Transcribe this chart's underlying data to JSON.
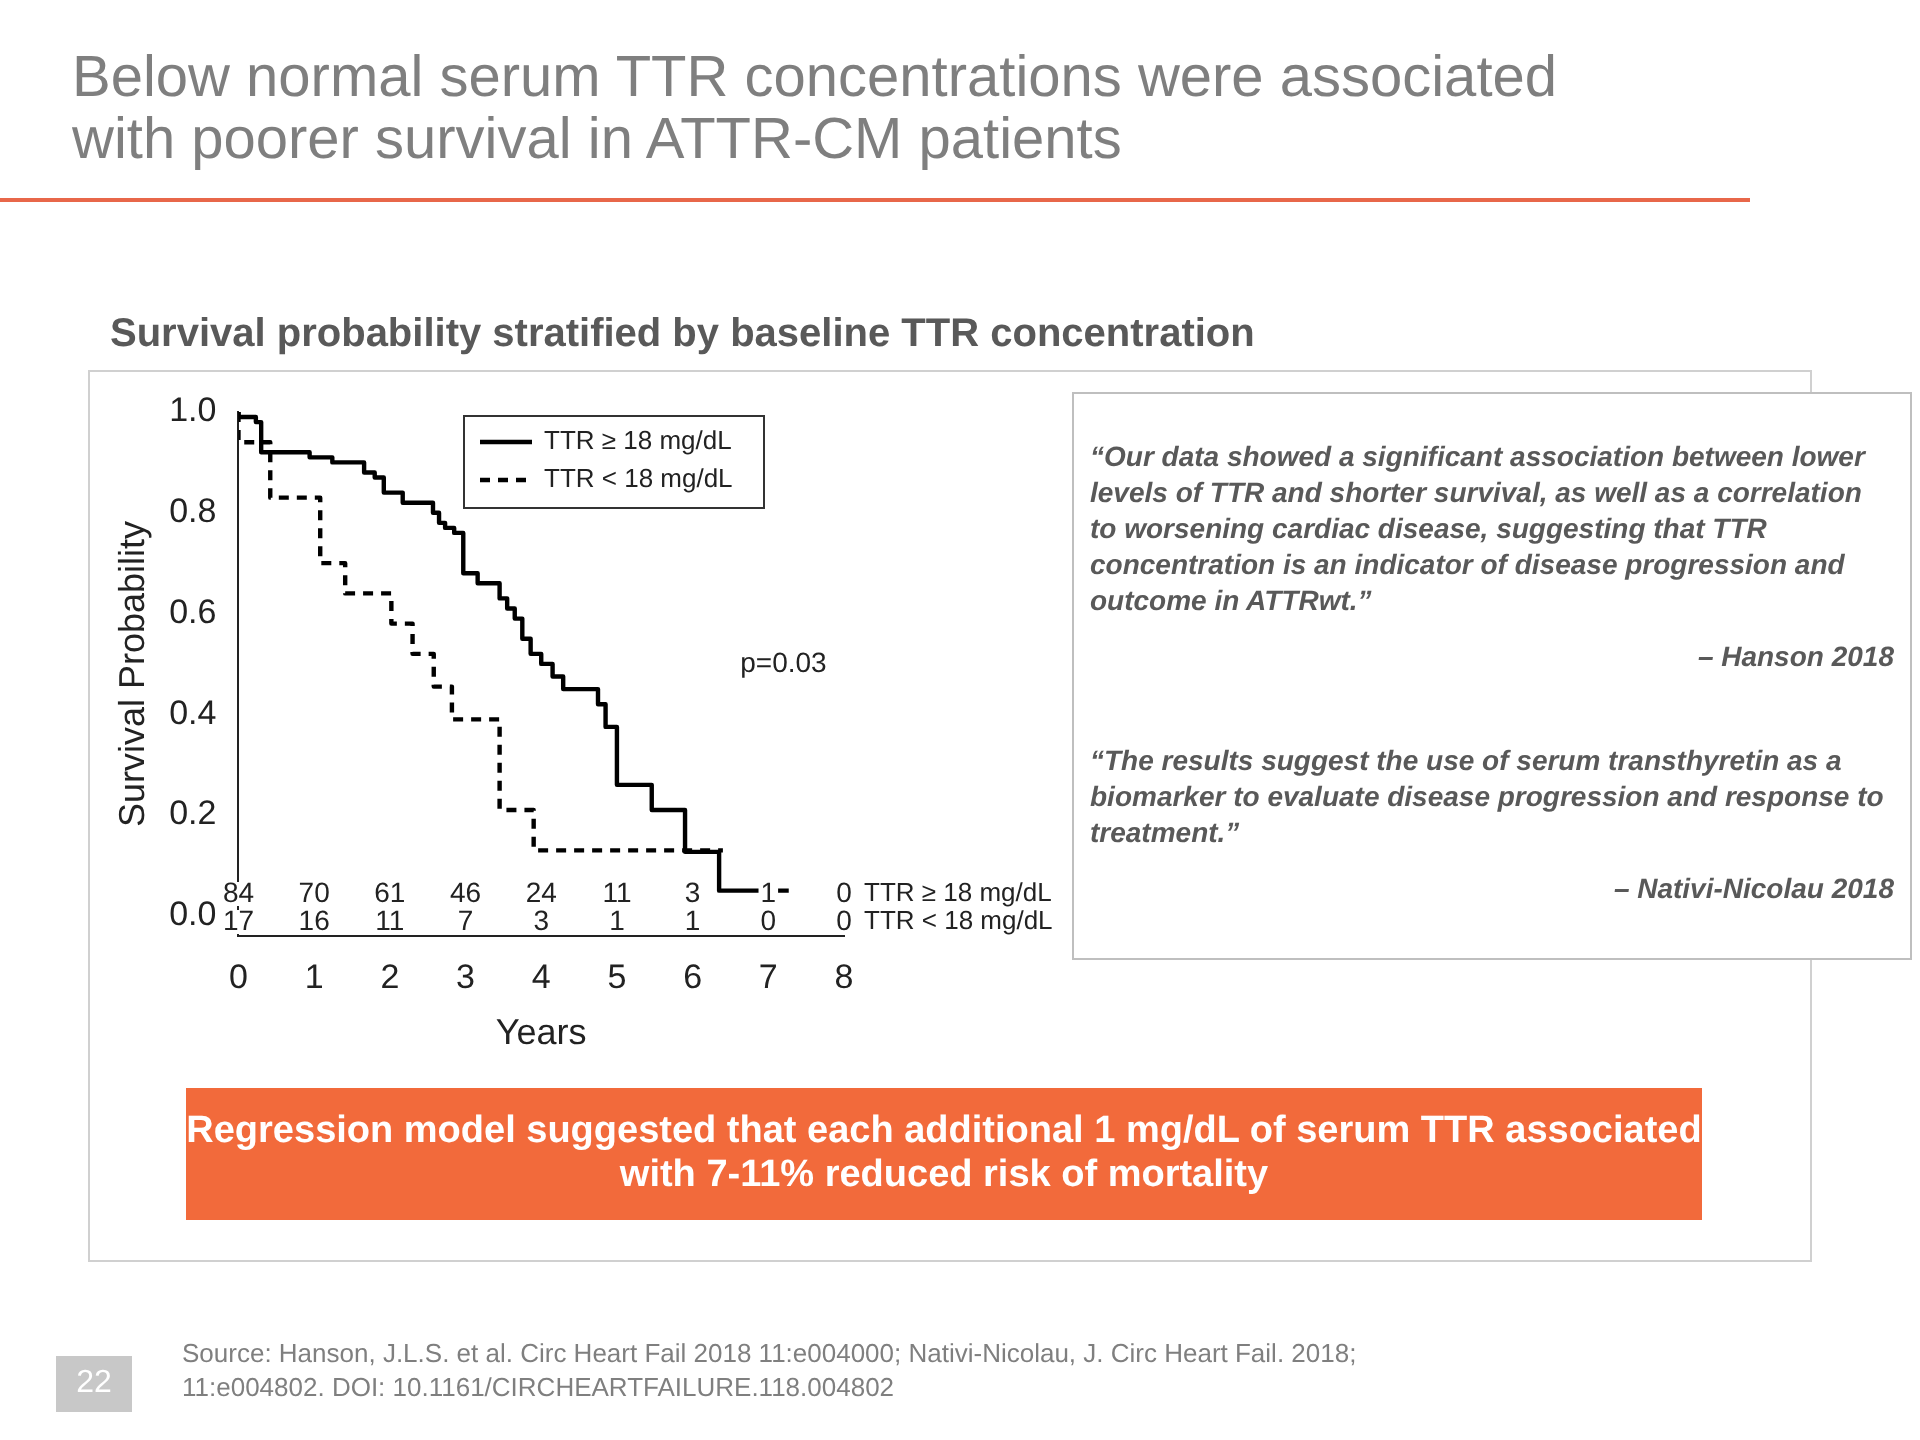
{
  "chart_data": {
    "type": "step",
    "title": "Below normal serum TTR concentrations were associated with poorer survival in ATTR-CM patients",
    "subtitle": "Survival probability stratified by baseline TTR concentration",
    "xlabel": "Years",
    "ylabel": "Survival Probability",
    "xlim": [
      0,
      8
    ],
    "xticks": [
      0,
      1,
      2,
      3,
      4,
      5,
      6,
      7,
      8
    ],
    "ylim": [
      -0.04,
      1.0
    ],
    "yticks": [
      {
        "value": 0,
        "label": "0.0"
      },
      0.2,
      0.4,
      0.6,
      0.8,
      {
        "value": 1,
        "label": "1.0"
      }
    ],
    "grid": false,
    "legend": "top right",
    "marker": "none",
    "series": [
      {
        "name": "TTR ≥ 18 mg/dL",
        "color": "#000000",
        "line_style": "solid",
        "x": [
          0,
          0.23,
          0.3,
          0.94,
          1.24,
          1.66,
          1.8,
          1.92,
          2.17,
          2.57,
          2.65,
          2.73,
          2.85,
          2.97,
          3.16,
          3.45,
          3.55,
          3.65,
          3.75,
          3.86,
          4.0,
          4.15,
          4.29,
          4.75,
          4.85,
          5.0,
          5.46,
          5.9,
          6.35,
          7.27
        ],
        "values": [
          1.0,
          0.99,
          0.98,
          0.92,
          0.91,
          0.9,
          0.88,
          0.87,
          0.84,
          0.82,
          0.8,
          0.78,
          0.77,
          0.76,
          0.68,
          0.66,
          0.63,
          0.61,
          0.59,
          0.55,
          0.52,
          0.5,
          0.475,
          0.45,
          0.42,
          0.375,
          0.26,
          0.21,
          0.127,
          0.05
        ]
      },
      {
        "name": "TTR < 18 mg/dL",
        "color": "#000000",
        "line_style": "dashed",
        "x": [
          0,
          0.42,
          1.08,
          1.41,
          2.02,
          2.3,
          2.58,
          2.82,
          3.45,
          3.9,
          4.6,
          6.4
        ],
        "values": [
          1.0,
          0.94,
          0.83,
          0.7,
          0.64,
          0.58,
          0.52,
          0.455,
          0.39,
          0.21,
          0.13,
          0.13
        ]
      }
    ],
    "annotations": [
      "p=0.03",
      "TTR ≥ 18 mg/dL",
      "TTR < 18 mg/dL",
      "“Our data showed a significant association between lower levels of TTR and shorter survival, as well as a correlation to worsening cardiac disease, suggesting that TTR concentration is an indicator of disease progression and outcome in ATTRwt.”",
      "– Hanson 2018",
      "“The results suggest the use of serum transthyretin as a biomarker to evaluate disease progression and response to treatment.”",
      "– Nativi-Nicolau 2018",
      "Regression model suggested that each additional 1 mg/dL of serum TTR associated with 7-11% reduced risk of mortality",
      "Source: Hanson, J.L.S. et al. Circ Heart Fail 2018 11:e004000; Nativi-Nicolau, J. Circ Heart Fail. 2018; 11:e004802. DOI: 10.1161/CIRCHEARTFAILURE.118.004802",
      "22",
      "84",
      "70",
      "61",
      "46",
      "24",
      "11",
      "3",
      "1",
      "0",
      "17",
      "16",
      "11",
      "7",
      "3",
      "1",
      "1",
      "0",
      "0"
    ]
  }
}
